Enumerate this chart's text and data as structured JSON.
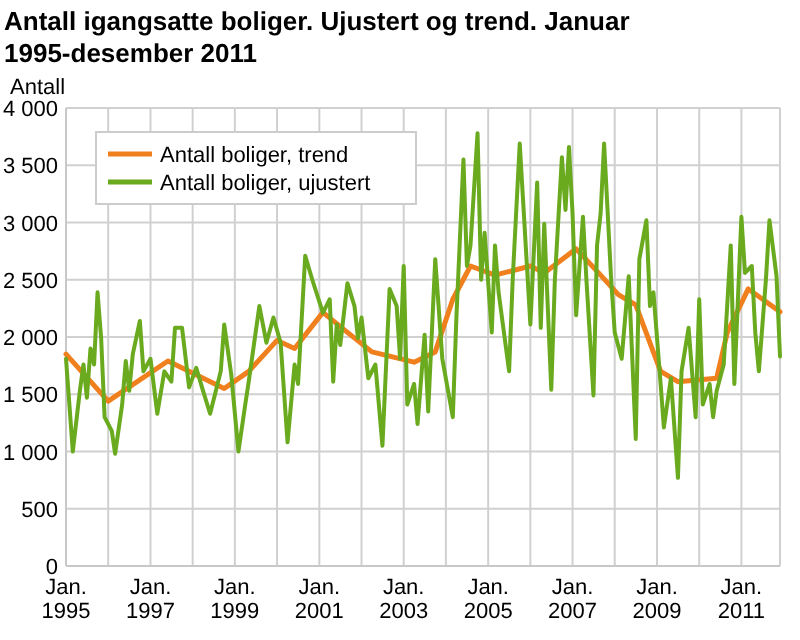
{
  "chart_data": {
    "type": "line",
    "title": "Antall igangsatte boliger. Ujustert og trend. Januar 1995-desember 2011",
    "ylabel": "Antall",
    "xlim": [
      "1995-01",
      "2011-12"
    ],
    "xticks": [
      {
        "value": "1995-01",
        "label": "Jan. 1995"
      },
      {
        "value": "1996-01",
        "label": null
      },
      {
        "value": "1997-01",
        "label": "Jan. 1997"
      },
      {
        "value": "1998-01",
        "label": null
      },
      {
        "value": "1999-01",
        "label": "Jan. 1999"
      },
      {
        "value": "2000-01",
        "label": null
      },
      {
        "value": "2001-01",
        "label": "Jan. 2001"
      },
      {
        "value": "2002-01",
        "label": null
      },
      {
        "value": "2003-01",
        "label": "Jan. 2003"
      },
      {
        "value": "2004-01",
        "label": null
      },
      {
        "value": "2005-01",
        "label": "Jan. 2005"
      },
      {
        "value": "2006-01",
        "label": null
      },
      {
        "value": "2007-01",
        "label": "Jan. 2007"
      },
      {
        "value": "2008-01",
        "label": null
      },
      {
        "value": "2009-01",
        "label": "Jan. 2009"
      },
      {
        "value": "2010-01",
        "label": null
      },
      {
        "value": "2011-01",
        "label": "Jan. 2011"
      }
    ],
    "ylim": [
      0,
      4000
    ],
    "yticks": [
      0,
      500,
      {
        "value": 1000,
        "label": "1 000"
      },
      {
        "value": 1500,
        "label": "1 500"
      },
      {
        "value": 2000,
        "label": "2 000"
      },
      {
        "value": 2500,
        "label": "2 500"
      },
      {
        "value": 3000,
        "label": "3 000"
      },
      {
        "value": 3500,
        "label": "3 500"
      },
      {
        "value": 4000,
        "label": "4 000"
      }
    ],
    "grid": true,
    "legend": "top left",
    "marker": "none",
    "line_style": "solid",
    "series": [
      {
        "name": "Antall boliger, trend",
        "color": "#f07f1d",
        "x": [
          "1995-01",
          "1996-01",
          "1997-06",
          "1998-10",
          "1999-05",
          "2000-01",
          "2000-06",
          "2001-02",
          "2001-09",
          "2002-04",
          "2003-04",
          "2003-10",
          "2004-03",
          "2004-08",
          "2005-03",
          "2006-01",
          "2006-05",
          "2007-02",
          "2007-09",
          "2008-02",
          "2008-07",
          "2009-02",
          "2009-07",
          "2010-06",
          "2010-09",
          "2011-03",
          "2011-12"
        ],
        "values": [
          1850,
          1440,
          1790,
          1550,
          1700,
          1970,
          1900,
          2215,
          2040,
          1870,
          1780,
          1870,
          2330,
          2620,
          2540,
          2620,
          2560,
          2770,
          2540,
          2370,
          2280,
          1700,
          1610,
          1640,
          2040,
          2420,
          2220
        ]
      },
      {
        "name": "Antall boliger, ujustert",
        "color": "#6aaa1e",
        "x": [
          "1995-01",
          "1995-03",
          "1995-05",
          "1995-06",
          "1995-07",
          "1995-08",
          "1995-09",
          "1995-10",
          "1995-11",
          "1995-12",
          "1996-02",
          "1996-03",
          "1996-05",
          "1996-06",
          "1996-07",
          "1996-08",
          "1996-10",
          "1996-11",
          "1997-01",
          "1997-03",
          "1997-05",
          "1997-07",
          "1997-08",
          "1997-10",
          "1997-12",
          "1998-02",
          "1998-04",
          "1998-06",
          "1998-09",
          "1998-10",
          "1998-12",
          "1999-02",
          "1999-04",
          "1999-05",
          "1999-08",
          "1999-10",
          "1999-12",
          "2000-02",
          "2000-04",
          "2000-06",
          "2000-07",
          "2000-09",
          "2000-11",
          "2001-02",
          "2001-04",
          "2001-05",
          "2001-06",
          "2001-07",
          "2001-09",
          "2001-11",
          "2001-12",
          "2002-01",
          "2002-03",
          "2002-05",
          "2002-07",
          "2002-09",
          "2002-11",
          "2002-12",
          "2003-01",
          "2003-02",
          "2003-04",
          "2003-05",
          "2003-07",
          "2003-08",
          "2003-10",
          "2003-12",
          "2004-03",
          "2004-04",
          "2004-06",
          "2004-07",
          "2004-08",
          "2004-10",
          "2004-11",
          "2004-12",
          "2005-02",
          "2005-03",
          "2005-04",
          "2005-07",
          "2005-08",
          "2005-10",
          "2006-01",
          "2006-03",
          "2006-04",
          "2006-05",
          "2006-07",
          "2006-08",
          "2006-10",
          "2006-11",
          "2006-12",
          "2007-01",
          "2007-02",
          "2007-04",
          "2007-05",
          "2007-07",
          "2007-08",
          "2007-09",
          "2007-10",
          "2007-12",
          "2008-01",
          "2008-03",
          "2008-05",
          "2008-07",
          "2008-08",
          "2008-10",
          "2008-11",
          "2008-12",
          "2009-02",
          "2009-03",
          "2009-05",
          "2009-07",
          "2009-08",
          "2009-10",
          "2009-12",
          "2010-01",
          "2010-02",
          "2010-04",
          "2010-05",
          "2010-06",
          "2010-08",
          "2010-10",
          "2010-11",
          "2011-01",
          "2011-02",
          "2011-04",
          "2011-05",
          "2011-06",
          "2011-08",
          "2011-09",
          "2011-11",
          "2011-12"
        ],
        "values": [
          1810,
          1000,
          1530,
          1760,
          1470,
          1900,
          1760,
          2390,
          1990,
          1300,
          1180,
          980,
          1410,
          1790,
          1530,
          1850,
          2140,
          1700,
          1810,
          1330,
          1700,
          1610,
          2080,
          2080,
          1560,
          1730,
          1530,
          1330,
          1700,
          2110,
          1670,
          1000,
          1410,
          1610,
          2270,
          1950,
          2170,
          1950,
          1080,
          1760,
          1590,
          2710,
          2500,
          2210,
          2330,
          1610,
          2110,
          1930,
          2470,
          2270,
          1990,
          2170,
          1640,
          1760,
          1050,
          2420,
          2270,
          1810,
          2620,
          1410,
          1590,
          1240,
          2020,
          1350,
          2680,
          1810,
          1300,
          2170,
          3550,
          2620,
          2800,
          3780,
          2500,
          2910,
          2040,
          2800,
          2390,
          1700,
          2500,
          3690,
          2110,
          3350,
          2080,
          2990,
          1540,
          2500,
          3570,
          3110,
          3660,
          3080,
          2190,
          3050,
          2500,
          1490,
          2800,
          3080,
          3690,
          2500,
          2040,
          1810,
          2530,
          1110,
          2680,
          3020,
          2270,
          2390,
          1590,
          1210,
          1640,
          770,
          1700,
          2080,
          1300,
          2330,
          1410,
          1590,
          1300,
          1530,
          1760,
          2800,
          1590,
          3050,
          2560,
          2620,
          2040,
          1700,
          2500,
          3020,
          2530,
          1830
        ]
      }
    ]
  }
}
